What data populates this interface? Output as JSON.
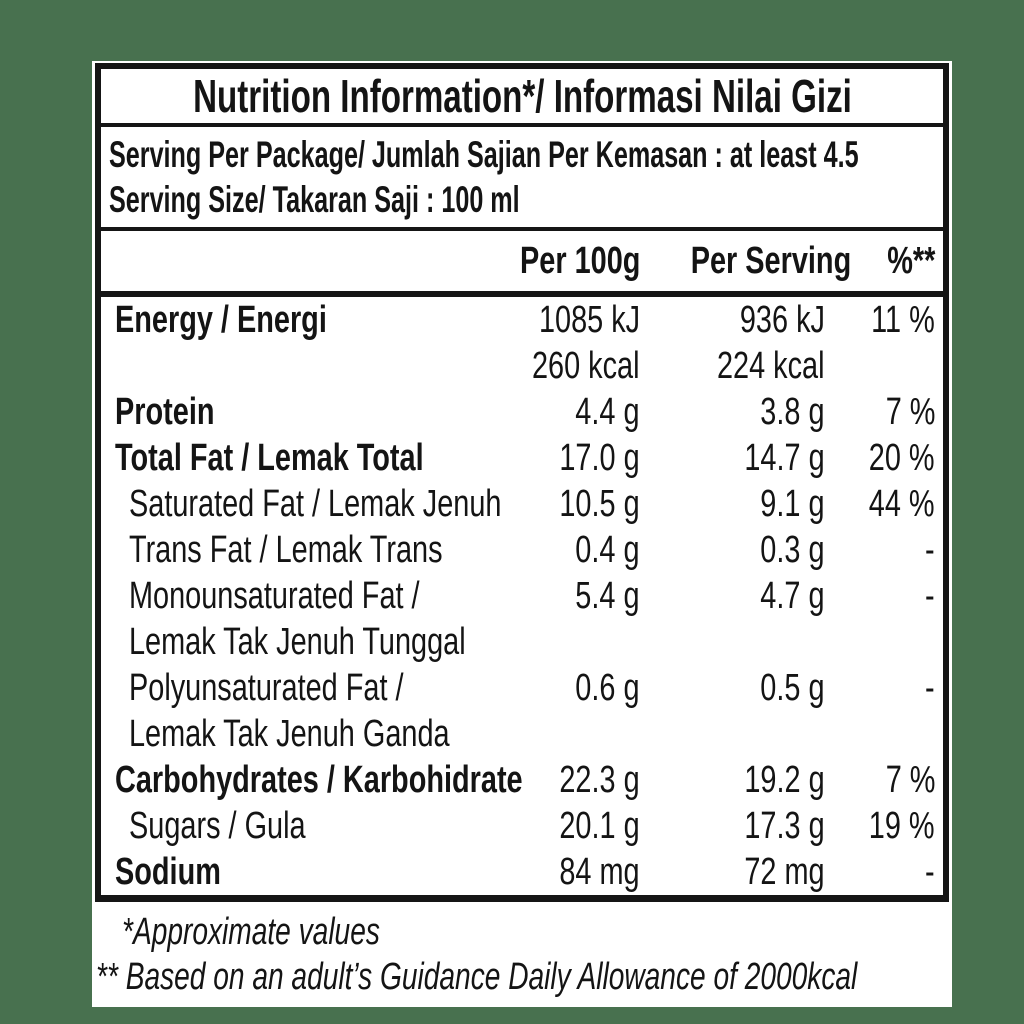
{
  "page_background": "#48714f",
  "sheet_color": "#ffffff",
  "text_color": "#141414",
  "border_color": "#151515",
  "label": {
    "title": "Nutrition Information*/ Informasi Nilai Gizi",
    "serving_lines": [
      "Serving Per Package/ Jumlah Sajian Per Kemasan : at least 4.5",
      "Serving Size/ Takaran Saji : 100 ml"
    ],
    "columns": [
      "Per 100g",
      "Per Serving",
      "%**"
    ],
    "rows": [
      {
        "label": "Energy / Energi",
        "style": "bold",
        "per_100g": "1085 kJ",
        "per_serving": "936 kJ",
        "pct": "11 %"
      },
      {
        "label": "",
        "style": "plain",
        "per_100g": "260 kcal",
        "per_serving": "224 kcal",
        "pct": ""
      },
      {
        "label": "Protein",
        "style": "bold",
        "per_100g": "4.4 g",
        "per_serving": "3.8 g",
        "pct": "7 %"
      },
      {
        "label": "Total Fat / Lemak Total",
        "style": "bold",
        "per_100g": "17.0 g",
        "per_serving": "14.7 g",
        "pct": "20 %"
      },
      {
        "label": "Saturated Fat / Lemak Jenuh",
        "style": "indent",
        "per_100g": "10.5 g",
        "per_serving": "9.1 g",
        "pct": "44 %"
      },
      {
        "label": "Trans Fat / Lemak Trans",
        "style": "indent",
        "per_100g": "0.4 g",
        "per_serving": "0.3 g",
        "pct": "-"
      },
      {
        "label": "Monounsaturated Fat /",
        "style": "indent",
        "per_100g": "5.4 g",
        "per_serving": "4.7 g",
        "pct": "-"
      },
      {
        "label": "Lemak Tak Jenuh Tunggal",
        "style": "indent",
        "per_100g": "",
        "per_serving": "",
        "pct": ""
      },
      {
        "label": "Polyunsaturated Fat /",
        "style": "indent",
        "per_100g": "0.6 g",
        "per_serving": "0.5 g",
        "pct": "-"
      },
      {
        "label": "Lemak Tak Jenuh Ganda",
        "style": "indent",
        "per_100g": "",
        "per_serving": "",
        "pct": ""
      },
      {
        "label": "Carbohydrates / Karbohidrate",
        "style": "bold",
        "per_100g": "22.3 g",
        "per_serving": "19.2 g",
        "pct": "7 %"
      },
      {
        "label": "Sugars / Gula",
        "style": "indent",
        "per_100g": "20.1 g",
        "per_serving": "17.3 g",
        "pct": "19 %"
      },
      {
        "label": "Sodium",
        "style": "bold",
        "per_100g": "84 mg",
        "per_serving": "72 mg",
        "pct": "-"
      }
    ],
    "footnotes": [
      "*Approximate values",
      "** Based on an adult’s Guidance Daily Allowance of 2000kcal"
    ]
  }
}
